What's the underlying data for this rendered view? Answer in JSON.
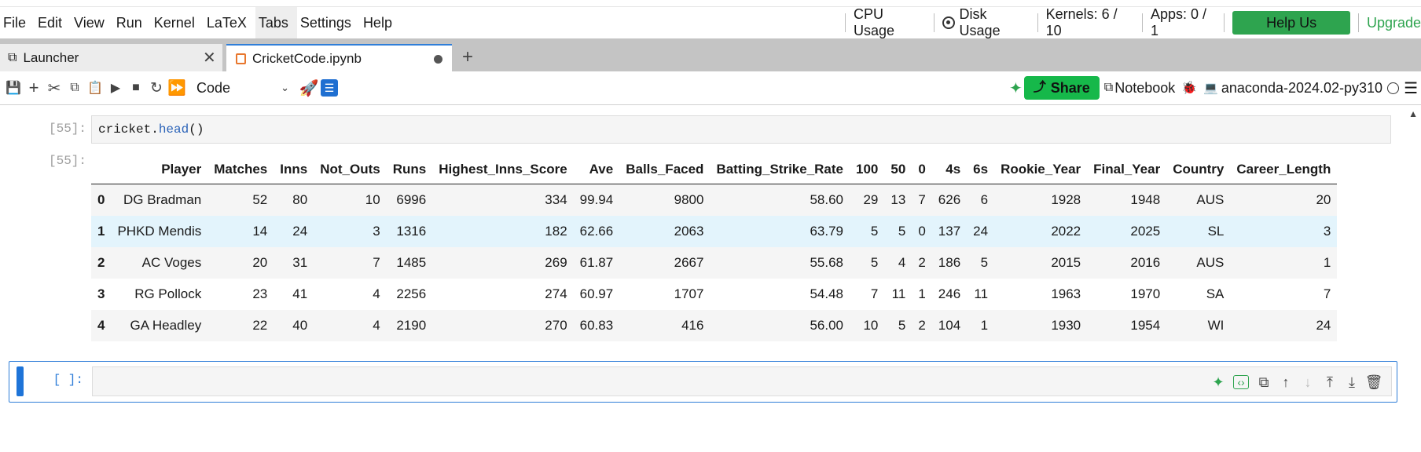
{
  "menu": [
    "File",
    "Edit",
    "View",
    "Run",
    "Kernel",
    "LaTeX",
    "Tabs",
    "Settings",
    "Help"
  ],
  "status": {
    "cpu": "CPU Usage",
    "disk": "Disk Usage",
    "kernels": "Kernels: 6 / 10",
    "apps": "Apps: 0 / 1",
    "improve": "Help Us Improve",
    "upgrade": "Upgrade"
  },
  "tabs": [
    {
      "label": "Launcher"
    },
    {
      "label": "CricketCode.ipynb"
    }
  ],
  "toolbar": {
    "cell_type": "Code",
    "share": "Share",
    "notebook": "Notebook",
    "kernel": "anaconda-2024.02-py310"
  },
  "cells": [
    {
      "prompt": "[55]:",
      "code_obj": "cricket.",
      "code_fn": "head",
      "code_rest": "()"
    },
    {
      "output_prompt": "[55]:"
    },
    {
      "prompt": "[ ]:"
    }
  ],
  "table": {
    "columns": [
      "",
      "Player",
      "Matches",
      "Inns",
      "Not_Outs",
      "Runs",
      "Highest_Inns_Score",
      "Ave",
      "Balls_Faced",
      "Batting_Strike_Rate",
      "100",
      "50",
      "0",
      "4s",
      "6s",
      "Rookie_Year",
      "Final_Year",
      "Country",
      "Career_Length"
    ],
    "rows": [
      [
        "0",
        "DG Bradman",
        "52",
        "80",
        "10",
        "6996",
        "334",
        "99.94",
        "9800",
        "58.60",
        "29",
        "13",
        "7",
        "626",
        "6",
        "1928",
        "1948",
        "AUS",
        "20"
      ],
      [
        "1",
        "PHKD Mendis",
        "14",
        "24",
        "3",
        "1316",
        "182",
        "62.66",
        "2063",
        "63.79",
        "5",
        "5",
        "0",
        "137",
        "24",
        "2022",
        "2025",
        "SL",
        "3"
      ],
      [
        "2",
        "AC Voges",
        "20",
        "31",
        "7",
        "1485",
        "269",
        "61.87",
        "2667",
        "55.68",
        "5",
        "4",
        "2",
        "186",
        "5",
        "2015",
        "2016",
        "AUS",
        "1"
      ],
      [
        "3",
        "RG Pollock",
        "23",
        "41",
        "4",
        "2256",
        "274",
        "60.97",
        "1707",
        "54.48",
        "7",
        "11",
        "1",
        "246",
        "11",
        "1963",
        "1970",
        "SA",
        "7"
      ],
      [
        "4",
        "GA Headley",
        "22",
        "40",
        "4",
        "2190",
        "270",
        "60.83",
        "416",
        "56.00",
        "10",
        "5",
        "2",
        "104",
        "1",
        "1930",
        "1954",
        "WI",
        "24"
      ]
    ]
  }
}
